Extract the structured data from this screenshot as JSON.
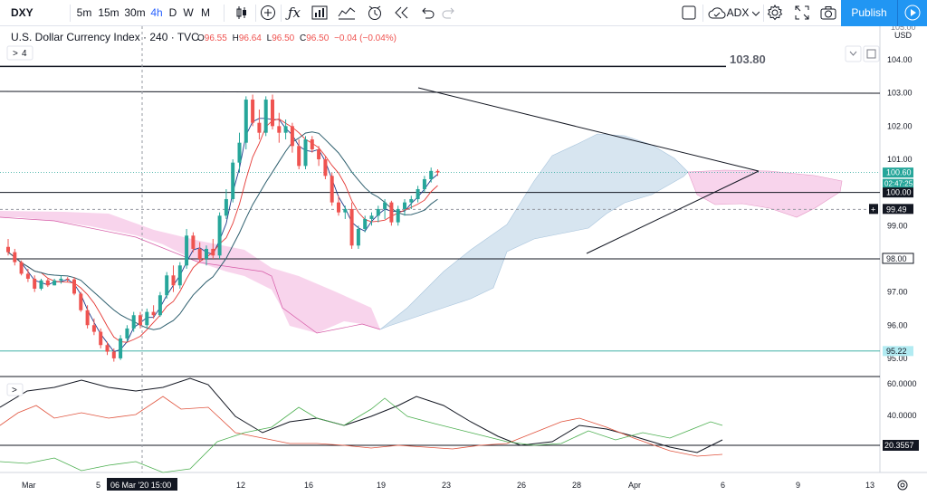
{
  "toolbar": {
    "symbol": "DXY",
    "intervals": [
      "5m",
      "15m",
      "30m",
      "4h",
      "D",
      "W",
      "M"
    ],
    "active_interval": "4h",
    "compare_label": "ADX",
    "publish_label": "Publish"
  },
  "legend": {
    "title": "U.S. Dollar Currency Index · 240 · TVC",
    "o_label": "O",
    "o": "96.55",
    "h_label": "H",
    "h": "96.64",
    "l_label": "L",
    "l": "96.50",
    "c_label": "C",
    "c": "96.50",
    "change": "−0.04 (−0.04%)",
    "collapsed_count": "4",
    "expand_glyph": ">"
  },
  "price_axis": {
    "currency": "USD",
    "ticks": [
      "103.00",
      "102.00",
      "101.00",
      "100.00",
      "99.00",
      "98.00",
      "97.00",
      "96.00",
      "95.00"
    ],
    "top_partial": "105.00",
    "top_tick": "104.00"
  },
  "time_axis": {
    "labels": [
      "Mar",
      "5",
      "12",
      "16",
      "19",
      "23",
      "26",
      "28",
      "Apr",
      "6",
      "9",
      "13"
    ],
    "crosshair_label": "06 Mar '20   15:00"
  },
  "annotations": {
    "resistance_text": "103.80"
  },
  "price_tags": {
    "current_price": "100.60",
    "countdown": "02:47:25",
    "level_100": "100.00",
    "crosshair_price": "99.49",
    "level_98": "98.00",
    "level_95": "95.22"
  },
  "oscillator": {
    "ticks": [
      "60.0000",
      "40.0000"
    ],
    "last_value": "20.3557"
  },
  "colors": {
    "up": "#26a69a",
    "down": "#ef5350",
    "cloud_bull": "#c9dceb",
    "cloud_bear": "#f5c5e6",
    "accent": "#2196f3",
    "adx_line": "#131722",
    "di_minus": "#e0533d",
    "di_plus": "#4caf50"
  },
  "chart_data": {
    "type": "candlestick",
    "symbol": "DXY",
    "timeframe": "240",
    "y_range": [
      94.8,
      105.0
    ],
    "current_price": 100.6,
    "horizontal_levels": [
      103.8,
      102.97,
      100.0,
      98.0,
      95.22
    ],
    "candles": [
      [
        98.36,
        98.6,
        98.1,
        98.2
      ],
      [
        98.2,
        98.3,
        97.8,
        97.9
      ],
      [
        97.9,
        97.95,
        97.5,
        97.55
      ],
      [
        97.55,
        97.7,
        97.3,
        97.4
      ],
      [
        97.4,
        97.5,
        97.0,
        97.1
      ],
      [
        97.1,
        97.4,
        97.05,
        97.35
      ],
      [
        97.35,
        97.4,
        97.15,
        97.2
      ],
      [
        97.2,
        97.4,
        97.2,
        97.35
      ],
      [
        97.35,
        97.5,
        97.25,
        97.4
      ],
      [
        97.4,
        97.45,
        97.3,
        97.38
      ],
      [
        97.38,
        97.45,
        96.9,
        96.95
      ],
      [
        96.95,
        97.0,
        96.4,
        96.45
      ],
      [
        96.45,
        96.6,
        95.9,
        96.0
      ],
      [
        96.0,
        96.2,
        95.7,
        95.8
      ],
      [
        95.8,
        95.9,
        95.3,
        95.4
      ],
      [
        95.4,
        95.5,
        95.1,
        95.2
      ],
      [
        95.2,
        95.3,
        94.9,
        95.0
      ],
      [
        95.0,
        95.7,
        94.95,
        95.6
      ],
      [
        95.6,
        96.0,
        95.5,
        95.9
      ],
      [
        95.9,
        96.4,
        95.8,
        96.3
      ],
      [
        96.3,
        96.4,
        95.9,
        96.0
      ],
      [
        96.0,
        96.5,
        95.9,
        96.4
      ],
      [
        96.4,
        96.6,
        96.2,
        96.3
      ],
      [
        96.3,
        97.0,
        96.25,
        96.9
      ],
      [
        96.9,
        97.6,
        96.8,
        97.5
      ],
      [
        97.5,
        97.8,
        97.0,
        97.2
      ],
      [
        97.2,
        97.9,
        97.1,
        97.8
      ],
      [
        97.8,
        98.9,
        97.7,
        98.7
      ],
      [
        98.7,
        98.8,
        98.2,
        98.3
      ],
      [
        98.3,
        98.5,
        97.9,
        98.0
      ],
      [
        98.0,
        98.4,
        97.8,
        98.3
      ],
      [
        98.3,
        98.6,
        98.0,
        98.1
      ],
      [
        98.1,
        99.4,
        98.0,
        99.3
      ],
      [
        99.3,
        100.1,
        99.2,
        99.8
      ],
      [
        99.8,
        101.0,
        99.7,
        100.9
      ],
      [
        100.9,
        101.8,
        100.6,
        101.5
      ],
      [
        101.5,
        102.9,
        101.3,
        102.8
      ],
      [
        102.8,
        102.95,
        102.0,
        102.1
      ],
      [
        102.1,
        102.5,
        101.6,
        101.8
      ],
      [
        101.8,
        102.9,
        101.7,
        102.8
      ],
      [
        102.8,
        102.95,
        101.9,
        102.0
      ],
      [
        102.0,
        102.4,
        101.5,
        101.8
      ],
      [
        101.8,
        102.2,
        101.6,
        102.0
      ],
      [
        102.0,
        102.1,
        101.2,
        101.4
      ],
      [
        101.4,
        101.6,
        100.7,
        100.8
      ],
      [
        100.8,
        101.7,
        100.7,
        101.6
      ],
      [
        101.6,
        101.7,
        101.2,
        101.3
      ],
      [
        101.3,
        101.4,
        100.8,
        101.0
      ],
      [
        101.0,
        101.1,
        100.4,
        100.5
      ],
      [
        100.5,
        100.6,
        99.6,
        99.7
      ],
      [
        99.7,
        99.9,
        99.3,
        99.4
      ],
      [
        99.4,
        99.6,
        99.2,
        99.5
      ],
      [
        99.5,
        99.7,
        98.3,
        98.4
      ],
      [
        98.4,
        99.0,
        98.3,
        98.9
      ],
      [
        98.9,
        99.3,
        98.8,
        99.2
      ],
      [
        99.2,
        99.4,
        99.0,
        99.3
      ],
      [
        99.3,
        99.6,
        99.1,
        99.5
      ],
      [
        99.5,
        99.8,
        99.2,
        99.7
      ],
      [
        99.7,
        99.75,
        99.0,
        99.1
      ],
      [
        99.1,
        99.6,
        99.0,
        99.5
      ],
      [
        99.5,
        99.8,
        99.3,
        99.7
      ],
      [
        99.7,
        99.9,
        99.5,
        99.8
      ],
      [
        99.8,
        100.2,
        99.7,
        100.1
      ],
      [
        100.1,
        100.5,
        100.0,
        100.4
      ],
      [
        100.4,
        100.75,
        100.3,
        100.65
      ],
      [
        100.65,
        100.7,
        100.5,
        100.6
      ]
    ],
    "triangle": {
      "upper": [
        [
          102.5,
          103.1
        ],
        [
          111.6,
          100.75
        ]
      ],
      "lower": [
        [
          88.5,
          98.2
        ],
        [
          111.6,
          100.7
        ]
      ]
    },
    "oscillator_series": {
      "name": "ADX",
      "lines": 3,
      "y_range": [
        0,
        70
      ],
      "last_value": 20.3557
    }
  }
}
